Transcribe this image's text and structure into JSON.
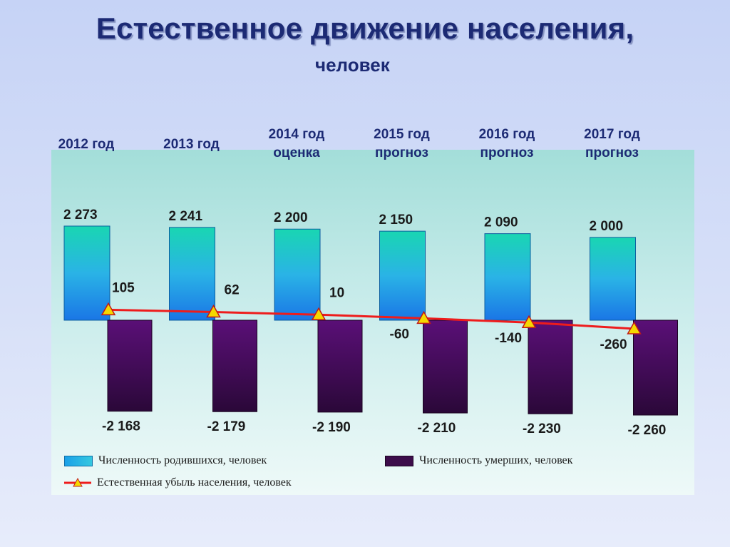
{
  "title": "Естественное движение населения,",
  "subtitle": "человек",
  "chart_data": {
    "type": "bar",
    "categories": [
      [
        "2012 год",
        ""
      ],
      [
        "2013 год",
        ""
      ],
      [
        "2014 год",
        "оценка"
      ],
      [
        "2015 год",
        "прогноз"
      ],
      [
        "2016 год",
        "прогноз"
      ],
      [
        "2017 год",
        "прогноз"
      ]
    ],
    "series": [
      {
        "name": "Численность родившихся, человек",
        "values": [
          2273,
          2241,
          2200,
          2150,
          2090,
          2000
        ],
        "labels": [
          "2 273",
          "2 241",
          "2 200",
          "2 150",
          "2 090",
          "2 000"
        ]
      },
      {
        "name": "Численность умерших, человек",
        "values": [
          -2168,
          -2179,
          -2190,
          -2210,
          -2230,
          -2260
        ],
        "labels": [
          "-2 168",
          "-2 179",
          "-2 190",
          "-2 210",
          "-2 230",
          "-2 260"
        ]
      },
      {
        "name": "Естественная убыль населения, человек",
        "type": "line",
        "values": [
          105,
          62,
          10,
          -60,
          -140,
          -260
        ],
        "labels": [
          "105",
          "62",
          "10",
          "-60",
          "-140",
          "-260"
        ]
      }
    ],
    "colors": {
      "births": "#25b8e4",
      "deaths": "#3c0c4a",
      "line": "#ee1c1c",
      "marker": "#f5d800",
      "labels": "#1a1a1a"
    },
    "legend_position": "bottom"
  }
}
